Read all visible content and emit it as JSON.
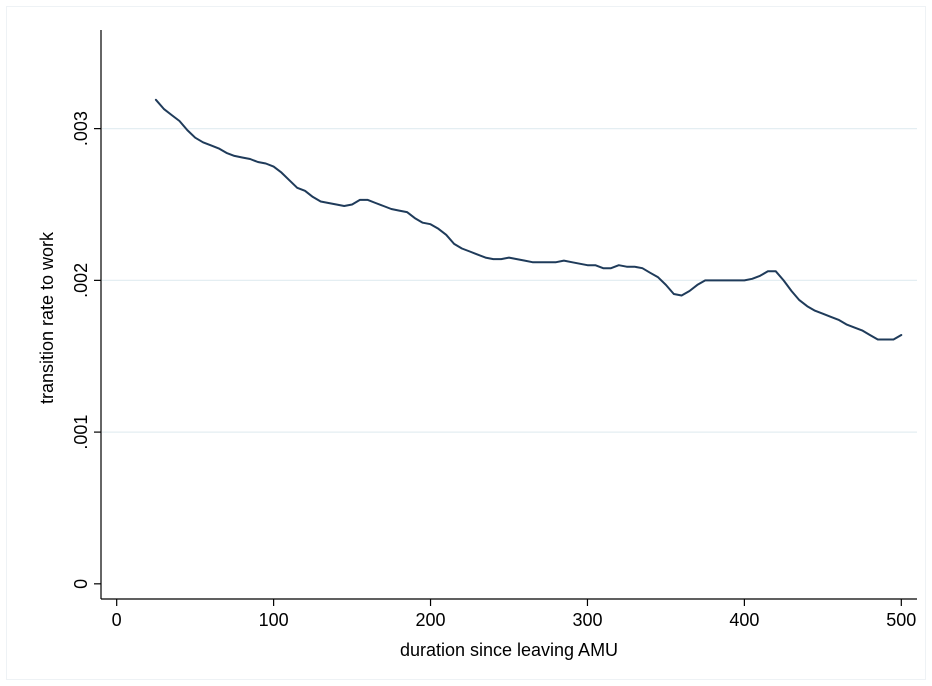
{
  "chart_data": {
    "type": "line",
    "xlabel": "duration since leaving AMU",
    "ylabel": "transition rate to work",
    "xlim": [
      -10,
      510
    ],
    "ylim": [
      -0.0001,
      0.00365
    ],
    "xticks": [
      0,
      100,
      200,
      300,
      400,
      500
    ],
    "xtick_labels": [
      "0",
      "100",
      "200",
      "300",
      "400",
      "500"
    ],
    "yticks": [
      0,
      0.001,
      0.002,
      0.003
    ],
    "ytick_labels": [
      "0",
      ".001",
      ".002",
      ".003"
    ],
    "grid": "horizontal",
    "colors": {
      "line": "#1f3b5a",
      "grid": "#e4eef2",
      "axis": "#000000"
    },
    "series": [
      {
        "x": [
          25,
          30,
          35,
          40,
          45,
          50,
          55,
          60,
          65,
          70,
          75,
          80,
          85,
          90,
          95,
          100,
          105,
          110,
          115,
          120,
          125,
          130,
          135,
          140,
          145,
          150,
          155,
          160,
          165,
          170,
          175,
          180,
          185,
          190,
          195,
          200,
          205,
          210,
          215,
          220,
          225,
          230,
          235,
          240,
          245,
          250,
          255,
          260,
          265,
          270,
          275,
          280,
          285,
          290,
          295,
          300,
          305,
          310,
          315,
          320,
          325,
          330,
          335,
          340,
          345,
          350,
          355,
          360,
          365,
          370,
          375,
          380,
          385,
          390,
          395,
          400,
          405,
          410,
          415,
          420,
          425,
          430,
          435,
          440,
          445,
          450,
          455,
          460,
          465,
          470,
          475,
          480,
          485,
          490,
          495,
          500
        ],
        "y": [
          0.00319,
          0.00313,
          0.00309,
          0.00305,
          0.00299,
          0.00294,
          0.00291,
          0.00289,
          0.00287,
          0.00284,
          0.00282,
          0.00281,
          0.0028,
          0.00278,
          0.00277,
          0.00275,
          0.00271,
          0.00266,
          0.00261,
          0.00259,
          0.00255,
          0.00252,
          0.00251,
          0.0025,
          0.00249,
          0.0025,
          0.00253,
          0.00253,
          0.00251,
          0.00249,
          0.00247,
          0.00246,
          0.00245,
          0.00241,
          0.00238,
          0.00237,
          0.00234,
          0.0023,
          0.00224,
          0.00221,
          0.00219,
          0.00217,
          0.00215,
          0.00214,
          0.00214,
          0.00215,
          0.00214,
          0.00213,
          0.00212,
          0.00212,
          0.00212,
          0.00212,
          0.00213,
          0.00212,
          0.00211,
          0.0021,
          0.0021,
          0.00208,
          0.00208,
          0.0021,
          0.00209,
          0.00209,
          0.00208,
          0.00205,
          0.00202,
          0.00197,
          0.00191,
          0.0019,
          0.00193,
          0.00197,
          0.002,
          0.002,
          0.002,
          0.002,
          0.002,
          0.002,
          0.00201,
          0.00203,
          0.00206,
          0.00206,
          0.002,
          0.00193,
          0.00187,
          0.00183,
          0.0018,
          0.00178,
          0.00176,
          0.00174,
          0.00171,
          0.00169,
          0.00167,
          0.00164,
          0.00161,
          0.00161,
          0.00161,
          0.00164
        ]
      }
    ]
  }
}
